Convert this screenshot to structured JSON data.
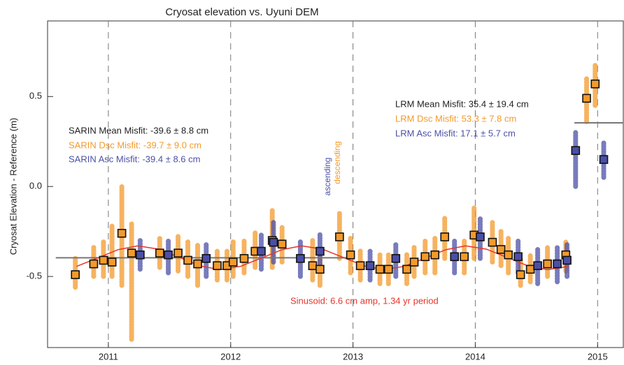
{
  "chart_data": {
    "type": "scatter",
    "title": "Cryosat elevation vs. Uyuni DEM",
    "y_label": "Cryosat Elevation - Reference (m)",
    "xlim": [
      2010.503,
      2015.21
    ],
    "ylim": [
      -0.895,
      0.92
    ],
    "xticks": [
      2011,
      2012,
      2013,
      2014,
      2015
    ],
    "yticks": [
      0.5,
      {
        "value": 0,
        "label": "0.0"
      },
      -0.5
    ],
    "grid": true,
    "series": [
      {
        "color": "#f39a2b",
        "x": [
          2010.73,
          2010.88,
          2010.96,
          2011.03,
          2011.11,
          2011.19,
          2011.42,
          2011.57,
          2011.65,
          2011.73,
          2011.89,
          2011.97,
          2012.02,
          2012.11,
          2012.2,
          2012.34,
          2012.42,
          2012.67,
          2012.73,
          2012.89,
          2012.98,
          2013.06,
          2013.22,
          2013.29,
          2013.44,
          2013.5,
          2013.59,
          2013.67,
          2013.75,
          2013.91,
          2013.99,
          2014.14,
          2014.21,
          2014.27,
          2014.37,
          2014.45,
          2014.59,
          2014.74,
          2014.91,
          2014.98
        ],
        "values": [
          -0.49,
          -0.43,
          -0.41,
          -0.42,
          -0.26,
          -0.37,
          -0.37,
          -0.37,
          -0.41,
          -0.43,
          -0.44,
          -0.44,
          -0.42,
          -0.4,
          -0.36,
          -0.3,
          -0.32,
          -0.44,
          -0.46,
          -0.28,
          -0.38,
          -0.44,
          -0.46,
          -0.46,
          -0.46,
          -0.42,
          -0.39,
          -0.38,
          -0.28,
          -0.39,
          -0.27,
          -0.31,
          -0.35,
          -0.38,
          -0.49,
          -0.46,
          -0.43,
          -0.38,
          0.49,
          0.57
        ],
        "low": [
          -0.56,
          -0.5,
          -0.5,
          -0.5,
          -0.55,
          -0.85,
          -0.45,
          -0.47,
          -0.5,
          -0.55,
          -0.52,
          -0.52,
          -0.5,
          -0.48,
          -0.45,
          -0.45,
          -0.42,
          -0.52,
          -0.55,
          -0.4,
          -0.48,
          -0.52,
          -0.54,
          -0.54,
          -0.54,
          -0.5,
          -0.48,
          -0.48,
          -0.4,
          -0.48,
          -0.4,
          -0.42,
          -0.44,
          -0.48,
          -0.55,
          -0.53,
          -0.5,
          -0.47,
          0.36,
          0.45
        ],
        "high": [
          -0.4,
          -0.33,
          -0.3,
          -0.22,
          0.0,
          -0.2,
          -0.28,
          -0.27,
          -0.3,
          -0.32,
          -0.36,
          -0.36,
          -0.3,
          -0.3,
          -0.25,
          -0.13,
          -0.22,
          -0.3,
          -0.35,
          -0.15,
          -0.28,
          -0.35,
          -0.38,
          -0.38,
          -0.37,
          -0.33,
          -0.3,
          -0.28,
          -0.17,
          -0.3,
          -0.12,
          -0.2,
          -0.25,
          -0.28,
          -0.4,
          -0.38,
          -0.34,
          -0.3,
          0.6,
          0.68
        ]
      },
      {
        "color": "#4b4fa6",
        "x": [
          2011.26,
          2011.49,
          2011.8,
          2012.25,
          2012.35,
          2012.57,
          2012.73,
          2013.14,
          2013.35,
          2013.83,
          2014.04,
          2014.35,
          2014.51,
          2014.67,
          2014.75,
          2014.82,
          2015.05
        ],
        "values": [
          -0.38,
          -0.38,
          -0.4,
          -0.36,
          -0.31,
          -0.4,
          -0.36,
          -0.44,
          -0.4,
          -0.39,
          -0.28,
          -0.39,
          -0.44,
          -0.43,
          -0.41,
          0.2,
          0.15
        ],
        "low": [
          -0.46,
          -0.48,
          -0.5,
          -0.46,
          -0.42,
          -0.5,
          -0.46,
          -0.52,
          -0.5,
          -0.48,
          -0.4,
          -0.48,
          -0.54,
          -0.53,
          -0.5,
          0.0,
          0.05
        ],
        "high": [
          -0.3,
          -0.3,
          -0.32,
          -0.27,
          -0.2,
          -0.3,
          -0.26,
          -0.36,
          -0.32,
          -0.3,
          -0.18,
          -0.3,
          -0.35,
          -0.34,
          -0.32,
          0.3,
          0.25
        ]
      }
    ],
    "curve": {
      "color": "#e8352a",
      "x": [
        2010.74,
        2010.91,
        2011.08,
        2011.24,
        2011.41,
        2011.58,
        2011.75,
        2011.91,
        2012.08,
        2012.25,
        2012.42,
        2012.58,
        2012.75,
        2012.92,
        2013.09,
        2013.25,
        2013.42,
        2013.59,
        2013.76,
        2013.92,
        2014.09,
        2014.26,
        2014.43,
        2014.59,
        2014.76
      ],
      "values": [
        -0.444,
        -0.398,
        -0.351,
        -0.33,
        -0.348,
        -0.394,
        -0.441,
        -0.462,
        -0.444,
        -0.398,
        -0.351,
        -0.33,
        -0.348,
        -0.394,
        -0.441,
        -0.462,
        -0.444,
        -0.398,
        -0.351,
        -0.33,
        -0.348,
        -0.394,
        -0.441,
        -0.462,
        -0.444
      ]
    },
    "reference_lines": [
      {
        "value": -0.396,
        "x": [
          2010.57,
          2013.0
        ],
        "color": "#777777"
      },
      {
        "value": 0.354,
        "x": [
          2014.81,
          2015.21
        ],
        "color": "#777777"
      }
    ],
    "annotations": [
      {
        "text": "SARIN Mean Misfit: -39.6 ± 8.8 cm",
        "color": "#222222"
      },
      {
        "text": "SARIN Dsc Misfit: -39.7 ± 9.0 cm",
        "color": "#f39a2b"
      },
      {
        "text": "SARIN Asc Misfit: -39.4 ± 8.6 cm",
        "color": "#4b4fa6"
      },
      {
        "text": "LRM Mean Misfit: 35.4 ± 19.4 cm",
        "color": "#222222"
      },
      {
        "text": "LRM Dsc Misfit: 53.3 ± 7.8 cm",
        "color": "#f39a2b"
      },
      {
        "text": "LRM Asc Misfit: 17.1 ± 5.7 cm",
        "color": "#4b4fa6"
      },
      {
        "text": "Sinusoid: 6.6 cm amp, 1.34 yr period",
        "color": "#e8352a"
      },
      {
        "text": "ascending",
        "color": "#4b4fa6"
      },
      {
        "text": "descending",
        "color": "#f39a2b"
      }
    ]
  }
}
